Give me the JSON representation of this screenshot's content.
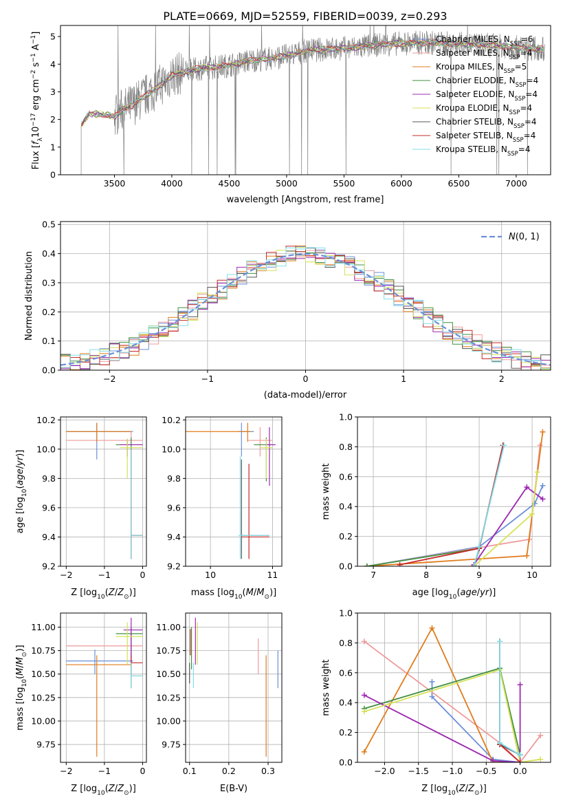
{
  "figure": {
    "title": "PLATE=0669, MJD=52559, FIBERID=0039, z=0.293"
  },
  "colors": {
    "axis": "#000000",
    "grid": "#b0b0b0",
    "data_grey": "#808080",
    "models": [
      "#6a8fd8",
      "#ef9a9a",
      "#e07b1a",
      "#3f8f3f",
      "#9c27b0",
      "#d4e157",
      "#555555",
      "#c62828",
      "#80deea"
    ]
  },
  "chart_data": [
    {
      "type": "line",
      "id": "spectrum",
      "xlabel": "wavelength [Angstrom, rest frame]",
      "ylabel": "Flux [f_λ10^-17 erg cm^-2 s^-1 A^-1]",
      "xlim": [
        3030,
        7300
      ],
      "ylim": [
        0,
        5.4
      ],
      "xticks": [
        3500,
        4000,
        4500,
        5000,
        5500,
        6000,
        6500,
        7000
      ],
      "yticks": [
        0,
        1,
        2,
        3,
        4,
        5
      ],
      "grid": false,
      "legend_position": "top-right",
      "data_envelope": {
        "x": [
          3210,
          3280,
          3350,
          3450,
          3500,
          3550,
          3650,
          3750,
          3850,
          3950,
          4000,
          4100,
          4250,
          4400,
          4550,
          4700,
          4850,
          5000,
          5200,
          5400,
          5600,
          5800,
          6000,
          6200,
          6400,
          6600,
          6800,
          7000,
          7250
        ],
        "y": [
          1.8,
          2.2,
          2.2,
          2.15,
          2.1,
          2.3,
          2.5,
          2.8,
          3.1,
          3.4,
          3.6,
          3.7,
          3.85,
          3.9,
          4.0,
          4.15,
          4.2,
          4.3,
          4.5,
          4.55,
          4.6,
          4.7,
          4.75,
          4.78,
          4.75,
          4.72,
          4.68,
          4.6,
          4.55
        ]
      },
      "series": [
        {
          "name": "Chabrier MILES, N_SSP=6"
        },
        {
          "name": "Salpeter MILES, N_SSP=4"
        },
        {
          "name": "Kroupa MILES, N_SSP=5"
        },
        {
          "name": "Chabrier ELODIE, N_SSP=4"
        },
        {
          "name": "Salpeter ELODIE, N_SSP=4"
        },
        {
          "name": "Kroupa ELODIE, N_SSP=4"
        },
        {
          "name": "Chabrier STELIB, N_SSP=4"
        },
        {
          "name": "Salpeter STELIB, N_SSP=4"
        },
        {
          "name": "Kroupa STELIB, N_SSP=4"
        }
      ]
    },
    {
      "type": "histogram",
      "id": "residuals",
      "xlabel": "(data-model)/error",
      "ylabel": "Normed distribution",
      "xlim": [
        -2.5,
        2.5
      ],
      "ylim": [
        0,
        0.51
      ],
      "xticks": [
        -2,
        -1,
        0,
        1,
        2
      ],
      "yticks": [
        0.0,
        0.1,
        0.2,
        0.3,
        0.4,
        0.5
      ],
      "grid": true,
      "bin_width": 0.1,
      "legend_position": "top-right",
      "legend": "N(0,1)"
    },
    {
      "type": "errorbar",
      "id": "age_vs_Z",
      "xlabel": "Z [log10(Z/Z⊙)]",
      "ylabel": "age [log10(age/yr)]",
      "xlim": [
        -2.15,
        0.1
      ],
      "ylim": [
        9.2,
        10.22
      ],
      "xticks": [
        -2,
        -1,
        0
      ],
      "yticks": [
        9.2,
        9.4,
        9.6,
        9.8,
        10.0,
        10.2
      ],
      "grid": true,
      "points": [
        {
          "x": -1.2,
          "xlo": -2.0,
          "xhi": -0.25,
          "y": 10.12,
          "ylo": 9.93,
          "yhi": 10.18,
          "c": 0
        },
        {
          "x": -0.3,
          "xlo": -2.0,
          "xhi": 0.0,
          "y": 10.06,
          "ylo": 9.35,
          "yhi": 10.12,
          "c": 1
        },
        {
          "x": -1.2,
          "xlo": -2.0,
          "xhi": -0.3,
          "y": 10.12,
          "ylo": 10.05,
          "yhi": 10.18,
          "c": 2
        },
        {
          "x": -0.3,
          "xlo": -0.7,
          "xhi": 0.0,
          "y": 10.03,
          "ylo": 9.78,
          "yhi": 10.08,
          "c": 3
        },
        {
          "x": -0.4,
          "xlo": -0.6,
          "xhi": 0.0,
          "y": 10.03,
          "ylo": 9.95,
          "yhi": 10.07,
          "c": 4
        },
        {
          "x": -0.4,
          "xlo": -0.6,
          "xhi": 0.0,
          "y": 10.01,
          "ylo": 9.8,
          "yhi": 10.07,
          "c": 5
        },
        {
          "x": -0.3,
          "xlo": -0.3,
          "xhi": 0.0,
          "y": 9.41,
          "ylo": 9.25,
          "yhi": 10.0,
          "c": 6
        },
        {
          "x": -0.3,
          "xlo": -0.3,
          "xhi": 0.0,
          "y": 9.41,
          "ylo": 9.25,
          "yhi": 10.0,
          "c": 7
        },
        {
          "x": -0.3,
          "xlo": -0.3,
          "xhi": 0.0,
          "y": 9.41,
          "ylo": 9.25,
          "yhi": 10.0,
          "c": 8
        }
      ]
    },
    {
      "type": "errorbar",
      "id": "age_vs_mass",
      "xlabel": "mass [log10(M/M⊙)]",
      "ylabel": "",
      "xlim": [
        9.6,
        11.15
      ],
      "ylim": [
        9.2,
        10.22
      ],
      "xticks": [
        10,
        11
      ],
      "yticks": [
        9.2,
        9.4,
        9.6,
        9.8,
        10.0,
        10.2
      ],
      "grid": true,
      "points": [
        {
          "x": 10.5,
          "xlo": 10.45,
          "xhi": 10.7,
          "y": 10.12,
          "ylo": 9.95,
          "yhi": 10.18,
          "c": 0
        },
        {
          "x": 10.8,
          "xlo": 10.6,
          "xhi": 11.0,
          "y": 10.06,
          "ylo": 9.95,
          "yhi": 10.15,
          "c": 1
        },
        {
          "x": 10.6,
          "xlo": 9.6,
          "xhi": 10.65,
          "y": 10.12,
          "ylo": 10.05,
          "yhi": 10.18,
          "c": 2
        },
        {
          "x": 10.9,
          "xlo": 10.7,
          "xhi": 11.0,
          "y": 10.03,
          "ylo": 9.78,
          "yhi": 10.08,
          "c": 3
        },
        {
          "x": 10.95,
          "xlo": 10.9,
          "xhi": 11.05,
          "y": 10.03,
          "ylo": 9.75,
          "yhi": 10.15,
          "c": 4
        },
        {
          "x": 10.9,
          "xlo": 10.8,
          "xhi": 11.0,
          "y": 10.01,
          "ylo": 9.8,
          "yhi": 10.07,
          "c": 5
        },
        {
          "x": 10.5,
          "xlo": 10.5,
          "xhi": 10.95,
          "y": 9.41,
          "ylo": 9.25,
          "yhi": 9.93,
          "c": 6
        },
        {
          "x": 10.62,
          "xlo": 10.5,
          "xhi": 10.95,
          "y": 9.4,
          "ylo": 9.25,
          "yhi": 9.9,
          "c": 7
        },
        {
          "x": 10.48,
          "xlo": 10.45,
          "xhi": 10.95,
          "y": 9.41,
          "ylo": 9.25,
          "yhi": 9.95,
          "c": 8
        }
      ]
    },
    {
      "type": "line",
      "id": "weight_vs_age",
      "xlabel": "age [log10(age/yr)]",
      "ylabel": "mass weight",
      "xlim": [
        6.7,
        10.35
      ],
      "ylim": [
        0,
        1.0
      ],
      "xticks": [
        7,
        8,
        9,
        10
      ],
      "yticks": [
        0.0,
        0.2,
        0.4,
        0.6,
        0.8,
        1.0
      ],
      "grid": true,
      "series": [
        {
          "c": 0,
          "x": [
            6.88,
            9.0,
            10.05,
            10.2
          ],
          "y": [
            0.0,
            0.13,
            0.42,
            0.54
          ]
        },
        {
          "c": 1,
          "x": [
            6.88,
            9.95,
            10.15
          ],
          "y": [
            0.0,
            0.18,
            0.81
          ]
        },
        {
          "c": 2,
          "x": [
            6.88,
            9.9,
            10.2
          ],
          "y": [
            0.0,
            0.07,
            0.9
          ]
        },
        {
          "c": 3,
          "x": [
            6.88,
            9.0,
            9.45
          ],
          "y": [
            0.0,
            0.12,
            0.81
          ]
        },
        {
          "c": 4,
          "x": [
            8.9,
            9.9,
            10.2
          ],
          "y": [
            0.01,
            0.53,
            0.45
          ]
        },
        {
          "c": 5,
          "x": [
            8.9,
            10.0,
            10.1
          ],
          "y": [
            0.0,
            0.35,
            0.63
          ]
        },
        {
          "c": 6,
          "x": [
            8.9,
            9.0,
            9.45
          ],
          "y": [
            0.0,
            0.12,
            0.81
          ]
        },
        {
          "c": 7,
          "x": [
            7.5,
            9.0,
            9.45
          ],
          "y": [
            0.01,
            0.12,
            0.81
          ]
        },
        {
          "c": 8,
          "x": [
            8.9,
            9.0,
            9.47
          ],
          "y": [
            0.0,
            0.13,
            0.81
          ]
        }
      ]
    },
    {
      "type": "errorbar",
      "id": "mass_vs_Z",
      "xlabel": "Z [log10(Z/Z⊙)]",
      "ylabel": "mass [log10(M/M⊙)]",
      "xlim": [
        -2.15,
        0.1
      ],
      "ylim": [
        9.56,
        11.15
      ],
      "xticks": [
        -2,
        -1,
        0
      ],
      "yticks": [
        9.75,
        10.0,
        10.25,
        10.5,
        10.75,
        11.0
      ],
      "grid": true,
      "points": [
        {
          "x": -1.25,
          "xlo": -2.0,
          "xhi": -0.25,
          "y": 10.64,
          "ylo": 10.5,
          "yhi": 10.76,
          "c": 0
        },
        {
          "x": -0.3,
          "xlo": -2.0,
          "xhi": 0.0,
          "y": 10.8,
          "ylo": 10.58,
          "yhi": 10.95,
          "c": 1
        },
        {
          "x": -1.2,
          "xlo": -2.0,
          "xhi": -0.3,
          "y": 10.6,
          "ylo": 9.62,
          "yhi": 10.7,
          "c": 2
        },
        {
          "x": -0.3,
          "xlo": -0.7,
          "xhi": 0.0,
          "y": 10.93,
          "ylo": 10.55,
          "yhi": 11.0,
          "c": 3
        },
        {
          "x": -0.3,
          "xlo": -0.5,
          "xhi": 0.0,
          "y": 10.97,
          "ylo": 10.62,
          "yhi": 11.1,
          "c": 4
        },
        {
          "x": -0.4,
          "xlo": -0.7,
          "xhi": 0.0,
          "y": 10.9,
          "ylo": 10.6,
          "yhi": 11.05,
          "c": 5
        },
        {
          "x": -0.3,
          "xlo": -0.3,
          "xhi": 0.0,
          "y": 10.48,
          "ylo": 10.35,
          "yhi": 10.62,
          "c": 6
        },
        {
          "x": -0.3,
          "xlo": -0.3,
          "xhi": 0.0,
          "y": 10.62,
          "ylo": 10.5,
          "yhi": 10.7,
          "c": 7
        },
        {
          "x": -0.3,
          "xlo": -0.3,
          "xhi": 0.0,
          "y": 10.48,
          "ylo": 10.35,
          "yhi": 10.62,
          "c": 8
        }
      ]
    },
    {
      "type": "errorbar",
      "id": "mass_vs_EBV",
      "xlabel": "E(B-V)",
      "ylabel": "",
      "xlim": [
        0.09,
        0.335
      ],
      "ylim": [
        9.56,
        11.15
      ],
      "xticks": [
        0.1,
        0.2,
        0.3
      ],
      "yticks": [
        9.75,
        10.0,
        10.25,
        10.5,
        10.75,
        11.0
      ],
      "grid": true,
      "points": [
        {
          "x": 0.325,
          "y": 10.55,
          "ylo": 10.35,
          "yhi": 10.75,
          "c": 0
        },
        {
          "x": 0.275,
          "y": 10.7,
          "ylo": 10.5,
          "yhi": 10.88,
          "c": 1
        },
        {
          "x": 0.295,
          "y": 10.2,
          "ylo": 9.62,
          "yhi": 10.7,
          "c": 2
        },
        {
          "x": 0.105,
          "y": 10.95,
          "ylo": 10.55,
          "yhi": 11.0,
          "c": 3
        },
        {
          "x": 0.115,
          "y": 10.97,
          "ylo": 10.6,
          "yhi": 11.1,
          "c": 4
        },
        {
          "x": 0.12,
          "y": 10.9,
          "ylo": 10.6,
          "yhi": 11.05,
          "c": 5
        },
        {
          "x": 0.1,
          "y": 10.5,
          "ylo": 10.4,
          "yhi": 10.62,
          "c": 6
        },
        {
          "x": 0.102,
          "y": 10.9,
          "ylo": 10.7,
          "yhi": 10.98,
          "c": 7
        },
        {
          "x": 0.11,
          "y": 10.48,
          "ylo": 10.35,
          "yhi": 10.62,
          "c": 8
        }
      ]
    },
    {
      "type": "line",
      "id": "weight_vs_Z",
      "xlabel": "Z [log10(Z/Z⊙)]",
      "ylabel": "mass weight",
      "xlim": [
        -2.4,
        0.45
      ],
      "ylim": [
        0,
        1.0
      ],
      "xticks": [
        -2.0,
        -1.5,
        -1.0,
        -0.5,
        0.0
      ],
      "yticks": [
        0.0,
        0.2,
        0.4,
        0.6,
        0.8,
        1.0
      ],
      "grid": true,
      "series": [
        {
          "c": 0,
          "x": [
            -1.3,
            -1.3,
            -0.4,
            0.0,
            0.0
          ],
          "y": [
            0.54,
            0.44,
            0.02,
            0.0,
            0.0
          ]
        },
        {
          "c": 1,
          "x": [
            -2.3,
            -0.3,
            0.0,
            0.3
          ],
          "y": [
            0.81,
            0.13,
            0.0,
            0.18
          ]
        },
        {
          "c": 2,
          "x": [
            -2.3,
            -1.3,
            -0.4,
            0.0
          ],
          "y": [
            0.07,
            0.9,
            0.0,
            0.0
          ]
        },
        {
          "c": 3,
          "x": [
            -2.3,
            -0.3,
            0.0,
            0.0
          ],
          "y": [
            0.36,
            0.63,
            0.05,
            0.0
          ]
        },
        {
          "c": 4,
          "x": [
            -2.3,
            -0.4,
            0.0,
            0.0
          ],
          "y": [
            0.45,
            0.01,
            0.0,
            0.52
          ]
        },
        {
          "c": 5,
          "x": [
            -2.3,
            -0.3,
            0.0,
            0.3
          ],
          "y": [
            0.34,
            0.62,
            0.0,
            0.02
          ]
        },
        {
          "c": 6,
          "x": [
            -0.3,
            -0.3,
            0.0
          ],
          "y": [
            0.81,
            0.12,
            0.05
          ]
        },
        {
          "c": 7,
          "x": [
            -0.3,
            -0.3,
            0.0
          ],
          "y": [
            0.81,
            0.12,
            0.0
          ]
        },
        {
          "c": 8,
          "x": [
            -0.3,
            -0.3,
            0.0
          ],
          "y": [
            0.81,
            0.13,
            0.05
          ]
        }
      ]
    }
  ]
}
